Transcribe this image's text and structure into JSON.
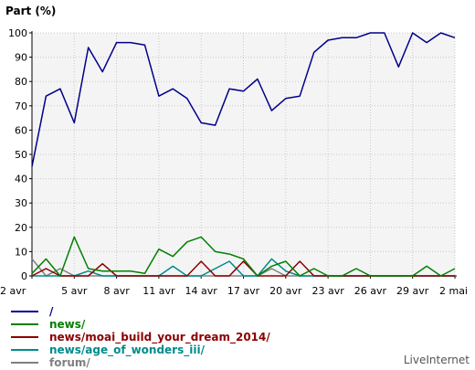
{
  "chart_data": {
    "type": "line",
    "ylabel": "Part (%)",
    "ylim": [
      0,
      100
    ],
    "yticks": [
      0,
      10,
      20,
      30,
      40,
      50,
      60,
      70,
      80,
      90,
      100
    ],
    "x_tick_labels": [
      "2 avr",
      "5 avr",
      "8 avr",
      "11 avr",
      "14 avr",
      "17 avr",
      "20 avr",
      "23 avr",
      "26 avr",
      "29 avr",
      "2 mai"
    ],
    "x_tick_index": [
      0,
      3,
      6,
      9,
      12,
      15,
      18,
      21,
      24,
      27,
      30
    ],
    "x_count": 31,
    "grid": true,
    "legend_position": "bottom-left",
    "series": [
      {
        "name": "/",
        "color": "#00008b",
        "values": [
          45,
          74,
          77,
          63,
          94,
          84,
          96,
          96,
          95,
          74,
          77,
          73,
          63,
          62,
          77,
          76,
          81,
          68,
          73,
          74,
          92,
          97,
          98,
          98,
          100,
          100,
          86,
          100,
          96,
          100,
          98
        ]
      },
      {
        "name": "news/",
        "color": "#008000",
        "values": [
          1,
          7,
          0,
          16,
          3,
          2,
          2,
          2,
          1,
          11,
          8,
          14,
          16,
          10,
          9,
          7,
          0,
          4,
          6,
          0,
          3,
          0,
          0,
          3,
          0,
          0,
          0,
          0,
          4,
          0,
          3
        ]
      },
      {
        "name": "news/moai_build_your_dream_2014/",
        "color": "#8b0000",
        "values": [
          0,
          3,
          0,
          0,
          0,
          5,
          0,
          0,
          0,
          0,
          0,
          0,
          6,
          0,
          0,
          6,
          0,
          0,
          0,
          6,
          0,
          0,
          0,
          0,
          0,
          0,
          0,
          0,
          0,
          0,
          0
        ]
      },
      {
        "name": "news/age_of_wonders_iii/",
        "color": "#008b8b",
        "values": [
          0,
          0,
          0,
          0,
          2,
          0,
          0,
          0,
          0,
          0,
          4,
          0,
          0,
          3,
          6,
          0,
          0,
          7,
          2,
          0,
          0,
          0,
          0,
          0,
          0,
          0,
          0,
          0,
          0,
          0,
          0
        ]
      },
      {
        "name": "forum/",
        "color": "#808080",
        "values": [
          7,
          0,
          3,
          0,
          0,
          0,
          0,
          0,
          0,
          0,
          0,
          0,
          0,
          0,
          0,
          0,
          0,
          3,
          0,
          0,
          0,
          0,
          0,
          0,
          0,
          0,
          0,
          0,
          0,
          0,
          0
        ]
      }
    ]
  },
  "branding": "LiveInternet"
}
